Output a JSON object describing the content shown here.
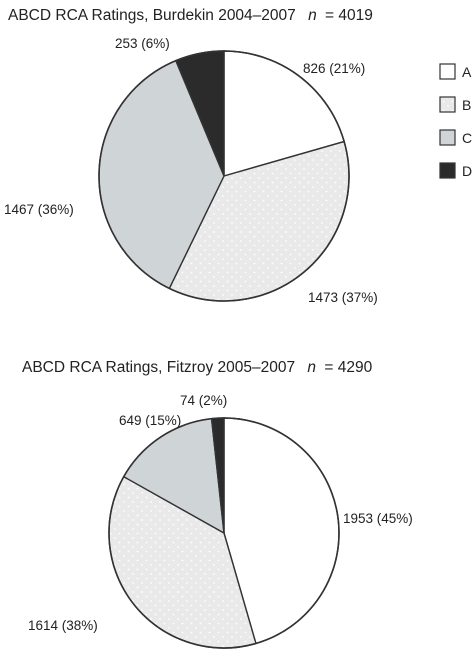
{
  "chart_data": [
    {
      "type": "pie",
      "title": "ABCD  RCA Ratings, Burdekin 2004–2007",
      "n_label": "n",
      "n_value": "= 4019",
      "categories": [
        "A",
        "B",
        "C",
        "D"
      ],
      "values": [
        826,
        1473,
        1467,
        253
      ],
      "percent": [
        21,
        37,
        36,
        6
      ],
      "labels": [
        "826 (21%)",
        "1473 (37%)",
        "1467 (36%)",
        "253 (6%)"
      ],
      "legend_position": "right"
    },
    {
      "type": "pie",
      "title": "ABCD  RCA Ratings, Fitzroy 2005–2007",
      "n_label": "n",
      "n_value": "= 4290",
      "categories": [
        "A",
        "B",
        "C",
        "D"
      ],
      "values": [
        1953,
        1614,
        649,
        74
      ],
      "percent": [
        45,
        38,
        15,
        2
      ],
      "labels": [
        "1953 (45%)",
        "1614 (38%)",
        "649 (15%)",
        "74 (2%)"
      ]
    }
  ],
  "legend": {
    "items": [
      {
        "label": "A",
        "fill": "white"
      },
      {
        "label": "B",
        "fill": "dots"
      },
      {
        "label": "C",
        "fill": "grey"
      },
      {
        "label": "D",
        "fill": "black"
      }
    ]
  },
  "colors": {
    "A": "#ffffff",
    "B": "#e9e9e9",
    "C": "#cfd4d6",
    "D": "#2b2b2b",
    "outline": "#333333"
  }
}
